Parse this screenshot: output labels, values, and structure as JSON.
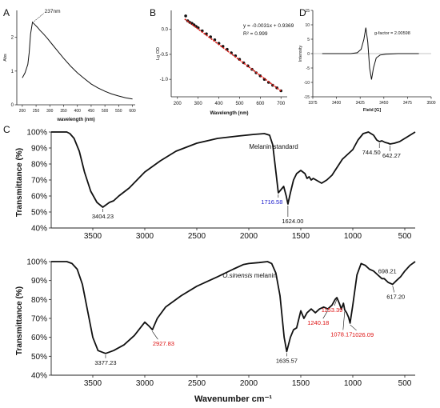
{
  "panels": {
    "A": "A",
    "B": "B",
    "C": "C",
    "D": "D"
  },
  "chart_data": [
    {
      "panel": "A",
      "type": "line",
      "xlabel": "wavelength (nm)",
      "ylabel": "Abs",
      "xlim": [
        180,
        610
      ],
      "ylim": [
        0,
        2.8
      ],
      "xticks": [
        200,
        250,
        300,
        350,
        400,
        450,
        500,
        550,
        600
      ],
      "yticks": [
        0,
        1,
        2
      ],
      "annotation": "237nm",
      "series": [
        {
          "x": [
            200,
            210,
            220,
            225,
            230,
            237,
            245,
            255,
            265,
            275,
            290,
            310,
            330,
            350,
            375,
            400,
            425,
            450,
            475,
            500,
            525,
            550,
            575,
            600
          ],
          "y": [
            0.8,
            0.95,
            1.2,
            1.55,
            2.1,
            2.45,
            2.38,
            2.3,
            2.2,
            2.12,
            1.98,
            1.78,
            1.58,
            1.38,
            1.15,
            0.95,
            0.78,
            0.62,
            0.5,
            0.4,
            0.32,
            0.26,
            0.21,
            0.17
          ]
        }
      ]
    },
    {
      "panel": "B",
      "type": "scatter",
      "xlabel": "Wavelength (nm)",
      "ylabel": "Lg OD",
      "xlim": [
        170,
        730
      ],
      "ylim": [
        -1.35,
        0.38
      ],
      "xticks": [
        200,
        300,
        400,
        500,
        600,
        700
      ],
      "yticks": [
        0.0,
        -0.5,
        -1.0
      ],
      "equation": "y = -0.0031x + 0.9369",
      "r2": "R² = 0.999",
      "fit": {
        "slope": -0.0031,
        "intercept": 0.9369,
        "x_range": [
          235,
          700
        ]
      },
      "series": [
        {
          "x": [
            240,
            250,
            260,
            270,
            280,
            290,
            300,
            320,
            340,
            360,
            380,
            400,
            420,
            440,
            460,
            480,
            500,
            520,
            540,
            560,
            580,
            600,
            620,
            640,
            660,
            680,
            700
          ],
          "y": [
            0.27,
            0.17,
            0.14,
            0.12,
            0.09,
            0.06,
            0.03,
            -0.03,
            -0.09,
            -0.15,
            -0.21,
            -0.28,
            -0.34,
            -0.4,
            -0.47,
            -0.53,
            -0.6,
            -0.67,
            -0.73,
            -0.8,
            -0.87,
            -0.93,
            -1.0,
            -1.06,
            -1.12,
            -1.17,
            -1.23
          ]
        }
      ]
    },
    {
      "panel": "D",
      "type": "line",
      "xlabel": "Field [G]",
      "ylabel": "Intensity",
      "xlim": [
        3375,
        3500
      ],
      "ylim": [
        -15,
        15
      ],
      "xticks": [
        3375,
        3400,
        3425,
        3450,
        3475,
        3500
      ],
      "yticks": [
        -15,
        -10,
        -5,
        0,
        5,
        10,
        15
      ],
      "annotation": "g-factor = 2.00598",
      "series": [
        {
          "x": [
            3385,
            3400,
            3415,
            3422,
            3426,
            3429,
            3431,
            3433,
            3435,
            3437,
            3439,
            3442,
            3446,
            3452,
            3465,
            3480,
            3487
          ],
          "y": [
            0,
            0,
            0,
            0.3,
            1.5,
            5,
            9,
            4,
            -5,
            -9,
            -5,
            -1.5,
            -0.5,
            -0.2,
            0,
            0,
            0
          ]
        }
      ]
    },
    {
      "panel": "C-top",
      "type": "line",
      "ylabel": "Transmittance (%)",
      "xlim": [
        3900,
        400
      ],
      "ylim": [
        40,
        100
      ],
      "xticks": [
        3500,
        3000,
        2500,
        2000,
        1500,
        1000,
        500
      ],
      "yticks": [
        "40%",
        "50%",
        "60%",
        "70%",
        "80%",
        "90%",
        "100%"
      ],
      "label": "Melanin standard",
      "peak_labels": [
        {
          "wn": 3404.23,
          "text": "3404.23",
          "color": "#111111"
        },
        {
          "wn": 1716.58,
          "text": "1716.58",
          "color": "#1a1acc"
        },
        {
          "wn": 1624.0,
          "text": "1624.00",
          "color": "#111111"
        },
        {
          "wn": 744.5,
          "text": "744.50",
          "color": "#111111"
        },
        {
          "wn": 642.27,
          "text": "642.27",
          "color": "#111111"
        }
      ],
      "series": [
        {
          "x": [
            3900,
            3750,
            3720,
            3680,
            3630,
            3580,
            3520,
            3460,
            3404,
            3340,
            3300,
            3250,
            3150,
            3000,
            2850,
            2700,
            2500,
            2300,
            2100,
            1950,
            1850,
            1800,
            1770,
            1745,
            1716,
            1690,
            1665,
            1640,
            1624,
            1600,
            1570,
            1540,
            1500,
            1460,
            1440,
            1420,
            1400,
            1380,
            1300,
            1250,
            1200,
            1150,
            1100,
            1050,
            1000,
            950,
            900,
            850,
            800,
            770,
            744,
            720,
            690,
            660,
            642,
            600,
            550,
            500,
            450,
            400
          ],
          "y": [
            100,
            100,
            99,
            96,
            88,
            75,
            63,
            56,
            53,
            56,
            57,
            60,
            65,
            75,
            82,
            88,
            93,
            96,
            97.5,
            98.5,
            99,
            98,
            92,
            78,
            62,
            64,
            66,
            60,
            55,
            62,
            70,
            74,
            76,
            74,
            71,
            72,
            70,
            71,
            68,
            70,
            73,
            78,
            83,
            86,
            89,
            95,
            99,
            100,
            98,
            95,
            94,
            94.5,
            93.5,
            93,
            92.5,
            93,
            94,
            96,
            98,
            100
          ]
        }
      ]
    },
    {
      "panel": "C-bottom",
      "type": "line",
      "xlabel": "Wavenumber cm⁻¹",
      "ylabel": "Transmittance (%)",
      "xlim": [
        3900,
        400
      ],
      "ylim": [
        40,
        100
      ],
      "xticks": [
        3500,
        3000,
        2500,
        2000,
        1500,
        1000,
        500
      ],
      "yticks": [
        "40%",
        "50%",
        "60%",
        "70%",
        "80%",
        "90%",
        "100%"
      ],
      "label_italic": "O.sinensis",
      "label_rest": " melanin",
      "peak_labels": [
        {
          "wn": 3377.23,
          "text": "3377.23",
          "color": "#111111"
        },
        {
          "wn": 2927.83,
          "text": "2927.83",
          "color": "#dd1111"
        },
        {
          "wn": 1635.57,
          "text": "1635.57",
          "color": "#111111"
        },
        {
          "wn": 1240.18,
          "text": "1240.18",
          "color": "#dd1111"
        },
        {
          "wn": 1153.39,
          "text": "1153.39",
          "color": "#dd1111"
        },
        {
          "wn": 1078.17,
          "text": "1078.17",
          "color": "#dd1111"
        },
        {
          "wn": 1026.09,
          "text": "1026.09",
          "color": "#dd1111"
        },
        {
          "wn": 698.21,
          "text": "698.21",
          "color": "#111111"
        },
        {
          "wn": 617.2,
          "text": "617.20",
          "color": "#111111"
        }
      ],
      "series": [
        {
          "x": [
            3900,
            3750,
            3700,
            3650,
            3600,
            3550,
            3500,
            3450,
            3377,
            3300,
            3200,
            3100,
            3000,
            2960,
            2927,
            2880,
            2800,
            2650,
            2500,
            2300,
            2150,
            2050,
            2000,
            1900,
            1820,
            1780,
            1740,
            1700,
            1660,
            1635,
            1600,
            1570,
            1540,
            1500,
            1470,
            1440,
            1400,
            1360,
            1320,
            1280,
            1240,
            1200,
            1170,
            1153,
            1130,
            1110,
            1090,
            1078,
            1060,
            1040,
            1026,
            1000,
            960,
            920,
            880,
            840,
            800,
            760,
            720,
            698,
            660,
            617,
            580,
            540,
            500,
            450,
            400
          ],
          "y": [
            100,
            100,
            99,
            96,
            88,
            74,
            60,
            53,
            51.5,
            53,
            56,
            61,
            68,
            66,
            64,
            70,
            76,
            82,
            87,
            92,
            96,
            98.5,
            99,
            99.5,
            100,
            99,
            94,
            82,
            60,
            52.5,
            60,
            64,
            65,
            74,
            70,
            73,
            75,
            73,
            75,
            76,
            75,
            77,
            80,
            81,
            78,
            75,
            78,
            74.5,
            73,
            70.5,
            67.5,
            77,
            93,
            99,
            98,
            96,
            95,
            93,
            91,
            91,
            89,
            88,
            90,
            92,
            95,
            98,
            100
          ]
        }
      ]
    }
  ]
}
